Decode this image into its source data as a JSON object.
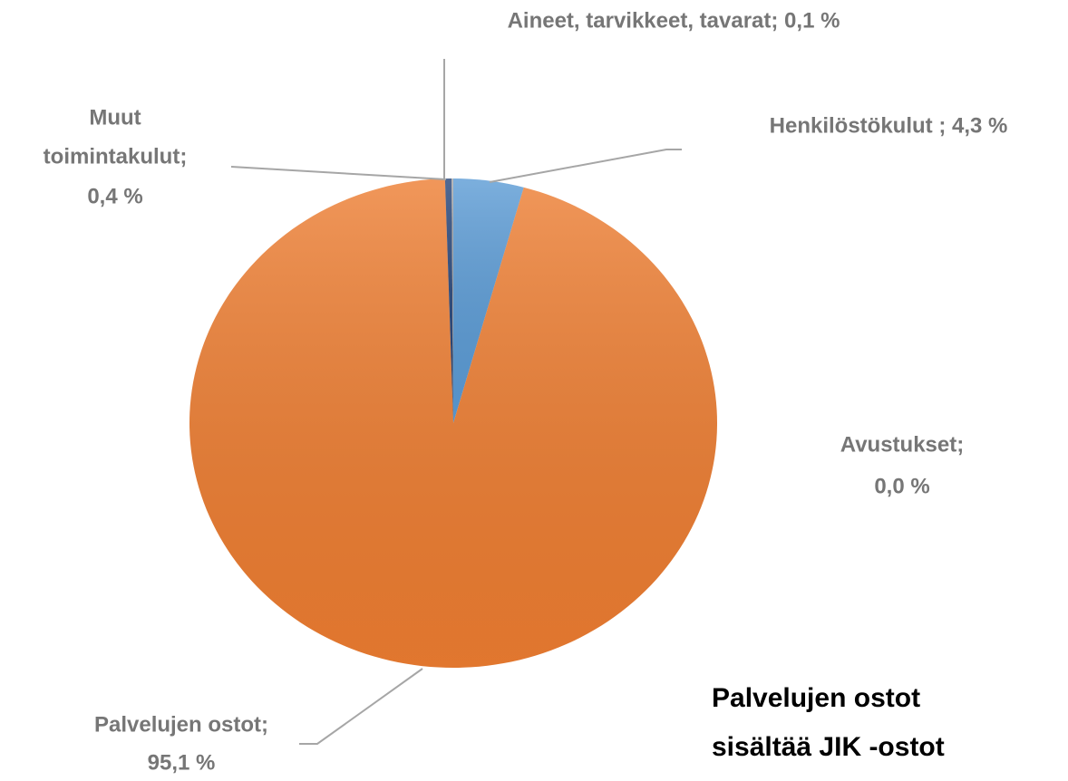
{
  "chart_data": {
    "type": "pie",
    "values": [
      4.3,
      95.1,
      0.0,
      0.4,
      0.1
    ],
    "value_labels": [
      [
        "Henkilöstökulut ; 4,3 %"
      ],
      [
        "Palvelujen ostot;",
        "95,1 %"
      ],
      [
        "Avustukset;",
        "0,0 %"
      ],
      [
        "Muut",
        "toimintakulut;",
        "0,4 %"
      ],
      [
        "Aineet, tarvikkeet, tavarat; 0,1 %"
      ]
    ],
    "colors": [
      "#5b9bd5",
      "#ed7d31",
      "#ffc000",
      "#264478",
      "#a5a5a5"
    ],
    "annotation": [
      "Palvelujen ostot",
      "sisältää JIK -ostot"
    ]
  }
}
